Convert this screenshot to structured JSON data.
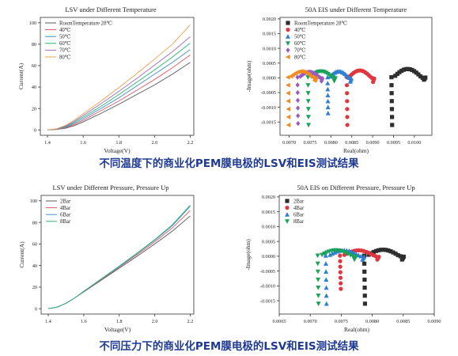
{
  "captions": {
    "top": "不同温度下的商业化PEM膜电极的LSV和EIS测试结果",
    "bottom": "不同压力下的商业化PEM膜电极的LSV和EIS测试结果"
  },
  "chart_data": [
    {
      "id": "lsv_temp",
      "type": "line",
      "title": "LSV under Different Temperature",
      "xlabel": "Voltage(V)",
      "ylabel": "Current(A)",
      "xlim": [
        1.36,
        2.22
      ],
      "ylim": [
        -5,
        105
      ],
      "xticks": [
        1.4,
        1.6,
        1.8,
        2.0,
        2.2
      ],
      "yticks": [
        0,
        20,
        40,
        60,
        80,
        100
      ],
      "legend": "top-left",
      "grid": false,
      "series": [
        {
          "name": "RoomTemperature 28℃",
          "color": "#55555f",
          "x": [
            1.4,
            1.45,
            1.5,
            1.55,
            1.6,
            1.7,
            1.8,
            1.9,
            2.0,
            2.1,
            2.2
          ],
          "y": [
            0,
            0.4,
            1.5,
            4,
            7.5,
            15.5,
            24,
            33,
            42,
            52,
            63
          ]
        },
        {
          "name": "40℃",
          "color": "#e35a63",
          "x": [
            1.4,
            1.45,
            1.5,
            1.55,
            1.6,
            1.7,
            1.8,
            1.9,
            2.0,
            2.1,
            2.2
          ],
          "y": [
            0,
            0.5,
            2,
            5,
            9,
            18,
            27,
            37,
            47,
            58,
            70
          ]
        },
        {
          "name": "50℃",
          "color": "#3f8fd0",
          "x": [
            1.4,
            1.45,
            1.5,
            1.55,
            1.6,
            1.7,
            1.8,
            1.9,
            2.0,
            2.1,
            2.2
          ],
          "y": [
            0,
            0.6,
            2.5,
            6,
            10.5,
            20,
            30,
            41,
            52,
            63,
            75
          ]
        },
        {
          "name": "60℃",
          "color": "#2bb673",
          "x": [
            1.4,
            1.45,
            1.5,
            1.55,
            1.6,
            1.7,
            1.8,
            1.9,
            2.0,
            2.1,
            2.2
          ],
          "y": [
            0,
            0.7,
            3,
            7,
            12,
            22,
            33,
            44.5,
            56,
            68,
            81
          ]
        },
        {
          "name": "70℃",
          "color": "#a46cc2",
          "x": [
            1.4,
            1.45,
            1.5,
            1.55,
            1.6,
            1.7,
            1.8,
            1.9,
            2.0,
            2.1,
            2.2
          ],
          "y": [
            0,
            0.8,
            3.5,
            8,
            13.5,
            24.5,
            36,
            48,
            60.5,
            73,
            87
          ]
        },
        {
          "name": "80℃",
          "color": "#f0a04b",
          "x": [
            1.4,
            1.45,
            1.5,
            1.55,
            1.6,
            1.7,
            1.8,
            1.9,
            2.0,
            2.1,
            2.2
          ],
          "y": [
            0,
            1,
            4.2,
            9,
            15,
            27,
            39.5,
            52.5,
            66,
            80,
            98
          ]
        }
      ]
    },
    {
      "id": "eis_temp",
      "type": "scatter",
      "title": "50A EIS under Different Temperature",
      "xlabel": "Real(ohm)",
      "ylabel": "-Image(ohm)",
      "xlim": [
        0.00678,
        0.01042
      ],
      "ylim": [
        -0.00195,
        0.00205
      ],
      "xticks": [
        0.007,
        0.0075,
        0.008,
        0.0085,
        0.009,
        0.0095,
        0.01
      ],
      "xticklabels": [
        "0.0070",
        "0.0075",
        "0.0080",
        "0.0085",
        "0.0090",
        "0.0095",
        "0.0100"
      ],
      "yticks": [
        -0.0015,
        -0.001,
        -0.0005,
        0,
        0.0005,
        0.001,
        0.0015,
        0.002
      ],
      "yticklabels": [
        "-0.0015",
        "-0.0010",
        "-0.0005",
        "0.0000",
        "0.0005",
        "0.0010",
        "0.0015",
        "0.0020"
      ],
      "legend": "top-left",
      "grid": false,
      "series": [
        {
          "name": "RoomTemperature 28℃",
          "color": "#2e2e2e",
          "marker": "square",
          "x0": 0.00945,
          "x1": 0.01028,
          "hf_tail": 0.0016,
          "lf_tail": 6e-05,
          "peak": 0.0003
        },
        {
          "name": "40℃",
          "color": "#e0363f",
          "marker": "circle",
          "x0": 0.00838,
          "x1": 0.00905,
          "hf_tail": 0.0016,
          "lf_tail": 0.0001,
          "peak": 0.00025
        },
        {
          "name": "50℃",
          "color": "#2e7fd1",
          "marker": "triangle-up",
          "x0": 0.00792,
          "x1": 0.0085,
          "hf_tail": 0.0012,
          "lf_tail": 9e-05,
          "peak": 0.00022
        },
        {
          "name": "60℃",
          "color": "#18a25a",
          "marker": "triangle-down",
          "x0": 0.00745,
          "x1": 0.00812,
          "hf_tail": 0.0016,
          "lf_tail": 8e-05,
          "peak": 0.00022
        },
        {
          "name": "70℃",
          "color": "#9b59c4",
          "marker": "diamond",
          "x0": 0.0072,
          "x1": 0.00781,
          "hf_tail": 0.00155,
          "lf_tail": 8e-05,
          "peak": 0.0002
        },
        {
          "name": "80℃",
          "color": "#f08b1c",
          "marker": "triangle-left",
          "x0": 0.00697,
          "x1": 0.00765,
          "hf_tail": 0.0016,
          "lf_tail": 7e-05,
          "peak": 0.00022
        }
      ]
    },
    {
      "id": "lsv_pressure",
      "type": "line",
      "title": "LSV under Different Pressure, Pressure Up",
      "xlabel": "Voltage(V)",
      "ylabel": "Current(A)",
      "xlim": [
        1.36,
        2.22
      ],
      "ylim": [
        -5,
        105
      ],
      "xticks": [
        1.4,
        1.6,
        1.8,
        2.0,
        2.2
      ],
      "yticks": [
        0,
        20,
        40,
        60,
        80,
        100
      ],
      "legend": "top-left",
      "grid": false,
      "series": [
        {
          "name": "2Bar",
          "color": "#55555f",
          "x": [
            1.4,
            1.45,
            1.5,
            1.55,
            1.6,
            1.7,
            1.8,
            1.9,
            2.0,
            2.1,
            2.2
          ],
          "y": [
            0,
            1.5,
            5,
            10,
            15.5,
            26.5,
            37.5,
            48.5,
            60,
            72,
            86
          ]
        },
        {
          "name": "4Bar",
          "color": "#e35a63",
          "x": [
            1.4,
            1.45,
            1.5,
            1.55,
            1.6,
            1.7,
            1.8,
            1.9,
            2.0,
            2.1,
            2.2
          ],
          "y": [
            0,
            1.5,
            5,
            10,
            15.8,
            27,
            38.5,
            50,
            62,
            75,
            91
          ]
        },
        {
          "name": "6Bar",
          "color": "#3f8fd0",
          "x": [
            1.4,
            1.45,
            1.5,
            1.55,
            1.6,
            1.7,
            1.8,
            1.9,
            2.0,
            2.1,
            2.2
          ],
          "y": [
            0,
            1.5,
            5,
            10,
            16,
            27.5,
            39,
            51,
            63.5,
            77,
            95
          ]
        },
        {
          "name": "8Bar",
          "color": "#2bb673",
          "x": [
            1.4,
            1.45,
            1.5,
            1.55,
            1.6,
            1.7,
            1.8,
            1.9,
            2.0,
            2.1,
            2.2
          ],
          "y": [
            0,
            1.5,
            5,
            10,
            16.2,
            27.8,
            39.5,
            51.5,
            64,
            78,
            96
          ]
        }
      ]
    },
    {
      "id": "eis_pressure",
      "type": "scatter",
      "title": "50A EIS on Different Pressure, Pressure Up",
      "xlabel": "Real(ohm)",
      "ylabel": "-Image(ohm)",
      "xlim": [
        0.0065,
        0.009
      ],
      "ylim": [
        -0.00195,
        0.00205
      ],
      "xticks": [
        0.0065,
        0.007,
        0.0075,
        0.008,
        0.0085,
        0.009
      ],
      "xticklabels": [
        "0.0065",
        "0.0070",
        "0.0075",
        "0.0080",
        "0.0085",
        "0.0090"
      ],
      "yticks": [
        -0.0015,
        -0.001,
        -0.0005,
        0,
        0.0005,
        0.001,
        0.0015,
        0.002
      ],
      "yticklabels": [
        "-0.0015",
        "-0.0010",
        "-0.0005",
        "0.0000",
        "0.0005",
        "0.0010",
        "0.0015",
        "0.0020"
      ],
      "legend": "top-left",
      "grid": false,
      "series": [
        {
          "name": "2Bar",
          "color": "#2e2e2e",
          "marker": "square",
          "x0": 0.00787,
          "x1": 0.00852,
          "hf_tail": 0.0016,
          "lf_tail": 8e-05,
          "peak": 0.00022
        },
        {
          "name": "4Bar",
          "color": "#e0363f",
          "marker": "circle",
          "x0": 0.00748,
          "x1": 0.00812,
          "hf_tail": 0.0011,
          "lf_tail": 8e-05,
          "peak": 0.0002
        },
        {
          "name": "6Bar",
          "color": "#2e7fd1",
          "marker": "triangle-up",
          "x0": 0.00725,
          "x1": 0.00788,
          "hf_tail": 0.0016,
          "lf_tail": 8e-05,
          "peak": 0.0002
        },
        {
          "name": "8Bar",
          "color": "#18a25a",
          "marker": "triangle-down",
          "x0": 0.00712,
          "x1": 0.00775,
          "hf_tail": 0.0016,
          "lf_tail": 8e-05,
          "peak": 0.0002
        }
      ]
    }
  ]
}
